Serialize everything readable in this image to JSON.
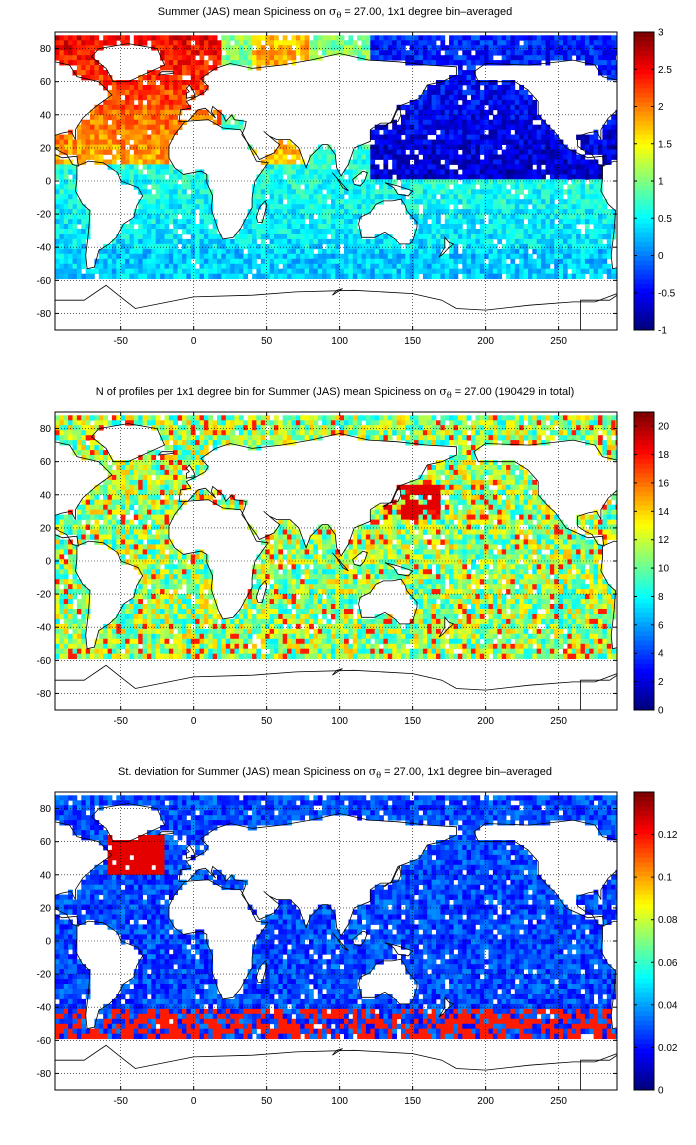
{
  "panels": [
    {
      "title_pre": "Summer (JAS) mean Spiciness on ",
      "sigma": "σ",
      "theta": "θ",
      "title_post": " = 27.00, 1x1 degree bin–averaged",
      "colorbar_ticks": [
        "3",
        "2.5",
        "2",
        "1.5",
        "1",
        "0.5",
        "0",
        "-0.5",
        "-1"
      ]
    },
    {
      "title_pre": "N of profiles per 1x1 degree bin for Summer (JAS) mean Spiciness on ",
      "sigma": "σ",
      "theta": "θ",
      "title_post": " = 27.00 (190429 in total)",
      "colorbar_ticks": [
        "20",
        "18",
        "16",
        "14",
        "12",
        "10",
        "8",
        "6",
        "4",
        "2",
        "0"
      ]
    },
    {
      "title_pre": "St. deviation for Summer (JAS) mean Spiciness on ",
      "sigma": "σ",
      "theta": "θ",
      "title_post": " = 27.00, 1x1 degree bin–averaged",
      "colorbar_ticks": [
        "0.12",
        "0.1",
        "0.08",
        "0.06",
        "0.04",
        "0.02",
        "0"
      ]
    }
  ],
  "x_ticks": [
    "-50",
    "0",
    "50",
    "100",
    "150",
    "200",
    "250"
  ],
  "y_ticks": [
    "80",
    "60",
    "40",
    "20",
    "0",
    "-20",
    "-40",
    "-60",
    "-80"
  ],
  "colormap": "jet",
  "colors": {
    "axis": "#000000",
    "background": "#ffffff",
    "coast": "#000000"
  },
  "chart_data": [
    {
      "type": "heatmap",
      "xlim": [
        -95,
        290
      ],
      "ylim": [
        -90,
        90
      ],
      "x_ticks": [
        -50,
        0,
        50,
        100,
        150,
        200,
        250
      ],
      "y_ticks": [
        80,
        60,
        40,
        20,
        0,
        -20,
        -40,
        -60,
        -80
      ],
      "colorbar": {
        "min": -1,
        "max": 3,
        "ticks": [
          3,
          2.5,
          2,
          1.5,
          1,
          0.5,
          0,
          -0.5,
          -1
        ]
      },
      "grid": true
    },
    {
      "type": "heatmap",
      "xlim": [
        -95,
        290
      ],
      "ylim": [
        -90,
        90
      ],
      "x_ticks": [
        -50,
        0,
        50,
        100,
        150,
        200,
        250
      ],
      "y_ticks": [
        80,
        60,
        40,
        20,
        0,
        -20,
        -40,
        -60,
        -80
      ],
      "colorbar": {
        "min": 0,
        "max": 21,
        "ticks": [
          20,
          18,
          16,
          14,
          12,
          10,
          8,
          6,
          4,
          2,
          0
        ]
      },
      "grid": true
    },
    {
      "type": "heatmap",
      "xlim": [
        -95,
        290
      ],
      "ylim": [
        -90,
        90
      ],
      "x_ticks": [
        -50,
        0,
        50,
        100,
        150,
        200,
        250
      ],
      "y_ticks": [
        80,
        60,
        40,
        20,
        0,
        -20,
        -40,
        -60,
        -80
      ],
      "colorbar": {
        "min": 0,
        "max": 0.14,
        "ticks": [
          0.12,
          0.1,
          0.08,
          0.06,
          0.04,
          0.02,
          0
        ]
      },
      "grid": true
    }
  ]
}
